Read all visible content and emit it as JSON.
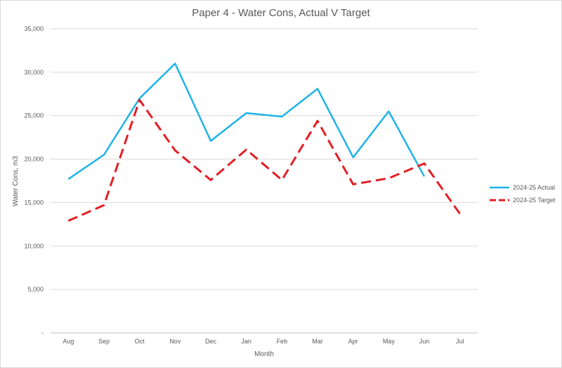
{
  "chart_data": {
    "type": "line",
    "title": "Paper 4 - Water Cons, Actual V Target",
    "xlabel": "Month",
    "ylabel": "Water Cons, m3",
    "categories": [
      "Aug",
      "Sep",
      "Oct",
      "Nov",
      "Dec",
      "Jan",
      "Feb",
      "Mar",
      "Apr",
      "May",
      "Jun",
      "Jul"
    ],
    "ylim": [
      0,
      35000
    ],
    "yticks": [
      {
        "value": 0,
        "label": "-"
      },
      {
        "value": 5000,
        "label": "5,000"
      },
      {
        "value": 10000,
        "label": "10,000"
      },
      {
        "value": 15000,
        "label": "15,000"
      },
      {
        "value": 20000,
        "label": "20,000"
      },
      {
        "value": 25000,
        "label": "25,000"
      },
      {
        "value": 30000,
        "label": "30,000"
      },
      {
        "value": 35000,
        "label": "35,000"
      }
    ],
    "grid": true,
    "legend_position": "right",
    "series": [
      {
        "name": "2024-25 Actual",
        "color": "#1eb3e8",
        "dash": "solid",
        "values": [
          17700,
          20500,
          27000,
          31000,
          22100,
          25300,
          24900,
          28100,
          20200,
          25500,
          18000,
          null
        ]
      },
      {
        "name": "2024-25 Target",
        "color": "#e31e24",
        "dash": "dashed",
        "values": [
          12900,
          14700,
          26800,
          21000,
          17600,
          21100,
          17600,
          24400,
          17100,
          17800,
          19500,
          13700
        ]
      }
    ]
  }
}
